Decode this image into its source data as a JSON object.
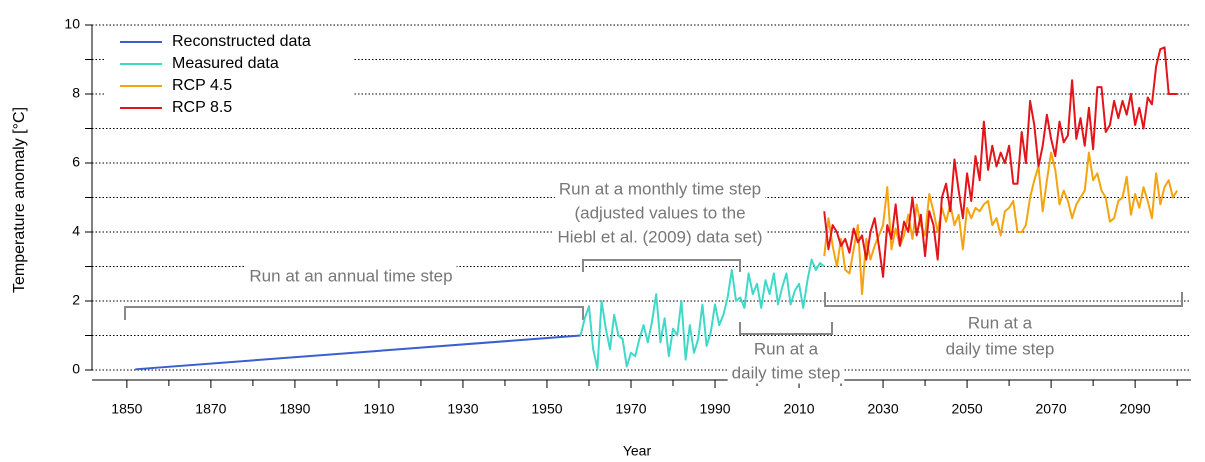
{
  "chart_data": {
    "type": "line",
    "xlabel": "Year",
    "ylabel": "Temperature anomaly [°C]",
    "xlim": [
      1841.7,
      2103.3
    ],
    "ylim": [
      -0.3,
      10.3
    ],
    "xticks": [
      1850,
      1870,
      1890,
      1910,
      1930,
      1950,
      1970,
      1990,
      2010,
      2030,
      2050,
      2070,
      2090
    ],
    "minor_xticks": [
      1860,
      1880,
      1900,
      1920,
      1940,
      1960,
      1980,
      2000,
      2020,
      2040,
      2060,
      2080,
      2100
    ],
    "yticks": [
      0,
      2,
      4,
      6,
      8,
      10
    ],
    "minor_yticks": [
      1,
      3,
      5,
      7,
      9
    ],
    "grid": true,
    "legend": "upper left",
    "series": [
      {
        "name": "Reconstructed data",
        "color": "#3b5fce",
        "x": [
          1852,
          1958
        ],
        "values": [
          0.02,
          1.0
        ]
      },
      {
        "name": "Measured data",
        "color": "#40d9c9",
        "x": [
          1958,
          1959,
          1960,
          1961,
          1962,
          1963,
          1964,
          1965,
          1966,
          1967,
          1968,
          1969,
          1970,
          1971,
          1972,
          1973,
          1974,
          1975,
          1976,
          1977,
          1978,
          1979,
          1980,
          1981,
          1982,
          1983,
          1984,
          1985,
          1986,
          1987,
          1988,
          1989,
          1990,
          1991,
          1992,
          1993,
          1994,
          1995,
          1996,
          1997,
          1998,
          1999,
          2000,
          2001,
          2002,
          2003,
          2004,
          2005,
          2006,
          2007,
          2008,
          2009,
          2010,
          2011,
          2012,
          2013,
          2014,
          2015,
          2016
        ],
        "values": [
          1.0,
          1.5,
          1.85,
          0.6,
          0.05,
          2.0,
          1.2,
          0.6,
          1.6,
          1.0,
          0.9,
          0.1,
          0.5,
          0.4,
          0.9,
          1.3,
          0.8,
          1.4,
          2.2,
          0.8,
          1.5,
          0.4,
          1.2,
          1.0,
          2.0,
          0.3,
          1.3,
          0.5,
          0.9,
          1.9,
          0.7,
          1.1,
          1.9,
          1.3,
          1.6,
          2.1,
          2.9,
          2.0,
          2.1,
          1.8,
          2.8,
          2.2,
          2.5,
          1.8,
          2.6,
          2.2,
          2.8,
          1.9,
          2.4,
          2.8,
          1.9,
          2.3,
          2.5,
          1.8,
          2.6,
          3.2,
          2.9,
          3.1,
          3.0
        ]
      },
      {
        "name": "RCP 4.5",
        "color": "#f5a30f",
        "x": [
          2016,
          2017,
          2018,
          2019,
          2020,
          2021,
          2022,
          2023,
          2024,
          2025,
          2026,
          2027,
          2028,
          2029,
          2030,
          2031,
          2032,
          2033,
          2034,
          2035,
          2036,
          2037,
          2038,
          2039,
          2040,
          2041,
          2042,
          2043,
          2044,
          2045,
          2046,
          2047,
          2048,
          2049,
          2050,
          2051,
          2052,
          2053,
          2054,
          2055,
          2056,
          2057,
          2058,
          2059,
          2060,
          2061,
          2062,
          2063,
          2064,
          2065,
          2066,
          2067,
          2068,
          2069,
          2070,
          2071,
          2072,
          2073,
          2074,
          2075,
          2076,
          2077,
          2078,
          2079,
          2080,
          2081,
          2082,
          2083,
          2084,
          2085,
          2086,
          2087,
          2088,
          2089,
          2090,
          2091,
          2092,
          2093,
          2094,
          2095,
          2096,
          2097,
          2098,
          2099,
          2100
        ],
        "values": [
          3.3,
          4.4,
          3.6,
          3.0,
          3.8,
          2.9,
          2.8,
          3.5,
          4.2,
          2.2,
          3.8,
          3.2,
          3.6,
          3.9,
          4.2,
          5.3,
          3.5,
          4.1,
          3.6,
          3.9,
          4.5,
          3.8,
          4.8,
          4.2,
          3.9,
          5.1,
          4.6,
          4.0,
          4.7,
          4.3,
          4.8,
          4.2,
          4.5,
          3.5,
          4.7,
          4.4,
          4.7,
          4.6,
          4.8,
          4.9,
          4.2,
          4.4,
          3.9,
          4.6,
          4.7,
          4.9,
          4.0,
          4.0,
          4.2,
          5.0,
          5.5,
          5.9,
          4.6,
          5.5,
          6.3,
          5.8,
          4.8,
          5.2,
          4.9,
          4.4,
          4.8,
          5.0,
          5.2,
          6.3,
          5.5,
          5.7,
          5.2,
          5.0,
          4.3,
          4.4,
          4.9,
          5.0,
          5.6,
          4.5,
          5.1,
          4.7,
          5.3,
          4.9,
          4.4,
          5.7,
          4.8,
          5.3,
          5.5,
          5.0,
          5.2
        ]
      },
      {
        "name": "RCP 8.5",
        "color": "#e4141b",
        "x": [
          2016,
          2017,
          2018,
          2019,
          2020,
          2021,
          2022,
          2023,
          2024,
          2025,
          2026,
          2027,
          2028,
          2029,
          2030,
          2031,
          2032,
          2033,
          2034,
          2035,
          2036,
          2037,
          2038,
          2039,
          2040,
          2041,
          2042,
          2043,
          2044,
          2045,
          2046,
          2047,
          2048,
          2049,
          2050,
          2051,
          2052,
          2053,
          2054,
          2055,
          2056,
          2057,
          2058,
          2059,
          2060,
          2061,
          2062,
          2063,
          2064,
          2065,
          2066,
          2067,
          2068,
          2069,
          2070,
          2071,
          2072,
          2073,
          2074,
          2075,
          2076,
          2077,
          2078,
          2079,
          2080,
          2081,
          2082,
          2083,
          2084,
          2085,
          2086,
          2087,
          2088,
          2089,
          2090,
          2091,
          2092,
          2093,
          2094,
          2095,
          2096,
          2097,
          2098,
          2099,
          2100
        ],
        "values": [
          4.6,
          3.5,
          4.2,
          4.0,
          3.6,
          3.8,
          3.4,
          4.1,
          3.7,
          3.9,
          3.2,
          4.0,
          4.4,
          3.6,
          2.7,
          4.2,
          3.8,
          4.8,
          3.6,
          4.3,
          4.0,
          5.0,
          3.9,
          4.5,
          3.3,
          4.6,
          4.2,
          3.2,
          5.0,
          5.4,
          4.6,
          6.1,
          5.2,
          4.4,
          5.7,
          4.9,
          6.2,
          5.5,
          7.2,
          5.8,
          6.5,
          5.9,
          6.3,
          6.0,
          6.5,
          5.4,
          5.4,
          6.9,
          6.0,
          7.8,
          7.1,
          5.9,
          6.5,
          7.4,
          6.7,
          6.2,
          7.2,
          6.6,
          6.8,
          8.4,
          6.7,
          7.3,
          6.5,
          7.6,
          6.4,
          8.2,
          8.2,
          6.9,
          7.1,
          7.8,
          7.3,
          7.8,
          7.4,
          8.0,
          7.1,
          7.6,
          7.0,
          7.9,
          7.7,
          8.8,
          9.3,
          9.35,
          8.0,
          8.0,
          8.0
        ]
      }
    ],
    "annotations": [
      {
        "lines": [
          "Run at an annual time step"
        ]
      },
      {
        "lines": [
          "Run at a monthly time step",
          "(adjusted values to the",
          "Hiebl et al. (2009) data set)"
        ]
      },
      {
        "lines": [
          "Run at a",
          "daily time step"
        ]
      },
      {
        "lines": [
          "Run at a",
          "daily time step"
        ]
      }
    ]
  }
}
